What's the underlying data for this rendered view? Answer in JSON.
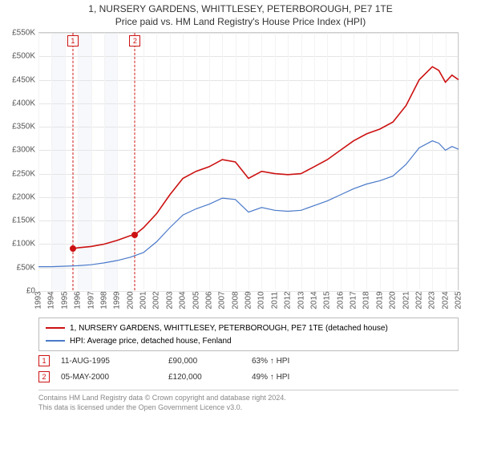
{
  "title": "1, NURSERY GARDENS, WHITTLESEY, PETERBOROUGH, PE7 1TE",
  "subtitle": "Price paid vs. HM Land Registry's House Price Index (HPI)",
  "chart": {
    "type": "line",
    "background_color": "#ffffff",
    "grid_color": "#e5e5e5",
    "grid_color_minor": "#f3f3f3",
    "axis_text_color": "#555555",
    "axis_fontsize": 10,
    "x": {
      "years": [
        1993,
        1994,
        1995,
        1996,
        1997,
        1998,
        1999,
        2000,
        2001,
        2002,
        2003,
        2004,
        2005,
        2006,
        2007,
        2008,
        2009,
        2010,
        2011,
        2012,
        2013,
        2014,
        2015,
        2016,
        2017,
        2018,
        2019,
        2020,
        2021,
        2022,
        2023,
        2024,
        2025
      ],
      "min_year": 1993,
      "max_year": 2025
    },
    "y": {
      "min": 0,
      "max": 550000,
      "ticks": [
        0,
        50000,
        100000,
        150000,
        200000,
        250000,
        300000,
        350000,
        400000,
        450000,
        500000,
        550000
      ],
      "labels": [
        "£0",
        "£50K",
        "£100K",
        "£150K",
        "£200K",
        "£250K",
        "£300K",
        "£350K",
        "£400K",
        "£450K",
        "£500K",
        "£550K"
      ]
    },
    "shaded_bands_years": [
      [
        1994,
        1995
      ],
      [
        1996,
        1997
      ],
      [
        1998,
        1999
      ]
    ],
    "series": [
      {
        "name": "property",
        "label": "1, NURSERY GARDENS, WHITTLESEY, PETERBOROUGH, PE7 1TE (detached house)",
        "color": "#cc1111",
        "line_width": 1.6,
        "points": [
          [
            1995.62,
            90000
          ],
          [
            1996,
            92000
          ],
          [
            1997,
            95000
          ],
          [
            1998,
            100000
          ],
          [
            1999,
            108000
          ],
          [
            2000,
            118000
          ],
          [
            2000.35,
            120000
          ],
          [
            2001,
            135000
          ],
          [
            2002,
            165000
          ],
          [
            2003,
            205000
          ],
          [
            2004,
            240000
          ],
          [
            2005,
            255000
          ],
          [
            2006,
            265000
          ],
          [
            2007,
            280000
          ],
          [
            2008,
            275000
          ],
          [
            2009,
            240000
          ],
          [
            2010,
            255000
          ],
          [
            2011,
            250000
          ],
          [
            2012,
            248000
          ],
          [
            2013,
            250000
          ],
          [
            2014,
            265000
          ],
          [
            2015,
            280000
          ],
          [
            2016,
            300000
          ],
          [
            2017,
            320000
          ],
          [
            2018,
            335000
          ],
          [
            2019,
            345000
          ],
          [
            2020,
            360000
          ],
          [
            2021,
            395000
          ],
          [
            2022,
            450000
          ],
          [
            2023,
            478000
          ],
          [
            2023.5,
            470000
          ],
          [
            2024,
            445000
          ],
          [
            2024.5,
            460000
          ],
          [
            2025,
            450000
          ]
        ]
      },
      {
        "name": "hpi",
        "label": "HPI: Average price, detached house, Fenland",
        "color": "#4a79c9",
        "line_width": 1.2,
        "points": [
          [
            1993,
            52000
          ],
          [
            1994,
            52000
          ],
          [
            1995,
            53000
          ],
          [
            1996,
            54000
          ],
          [
            1997,
            56000
          ],
          [
            1998,
            60000
          ],
          [
            1999,
            65000
          ],
          [
            2000,
            72000
          ],
          [
            2001,
            82000
          ],
          [
            2002,
            105000
          ],
          [
            2003,
            135000
          ],
          [
            2004,
            162000
          ],
          [
            2005,
            175000
          ],
          [
            2006,
            185000
          ],
          [
            2007,
            198000
          ],
          [
            2008,
            195000
          ],
          [
            2009,
            168000
          ],
          [
            2010,
            178000
          ],
          [
            2011,
            172000
          ],
          [
            2012,
            170000
          ],
          [
            2013,
            172000
          ],
          [
            2014,
            182000
          ],
          [
            2015,
            192000
          ],
          [
            2016,
            205000
          ],
          [
            2017,
            218000
          ],
          [
            2018,
            228000
          ],
          [
            2019,
            235000
          ],
          [
            2020,
            245000
          ],
          [
            2021,
            270000
          ],
          [
            2022,
            305000
          ],
          [
            2023,
            320000
          ],
          [
            2023.5,
            315000
          ],
          [
            2024,
            300000
          ],
          [
            2024.5,
            308000
          ],
          [
            2025,
            302000
          ]
        ]
      }
    ],
    "markers": [
      {
        "n": "1",
        "year": 1995.62,
        "value": 90000,
        "box_color": "#cc1111",
        "dot_color": "#cc1111"
      },
      {
        "n": "2",
        "year": 2000.35,
        "value": 120000,
        "box_color": "#cc1111",
        "dot_color": "#cc1111"
      }
    ]
  },
  "legend": {
    "border_color": "#bbbbbb",
    "fontsize": 10
  },
  "transactions": [
    {
      "n": "1",
      "date": "11-AUG-1995",
      "price": "£90,000",
      "hpi_delta": "63% ↑ HPI",
      "box_color": "#cc1111"
    },
    {
      "n": "2",
      "date": "05-MAY-2000",
      "price": "£120,000",
      "hpi_delta": "49% ↑ HPI",
      "box_color": "#cc1111"
    }
  ],
  "footer": {
    "line1": "Contains HM Land Registry data © Crown copyright and database right 2024.",
    "line2": "This data is licensed under the Open Government Licence v3.0.",
    "color": "#888888",
    "fontsize": 9
  }
}
